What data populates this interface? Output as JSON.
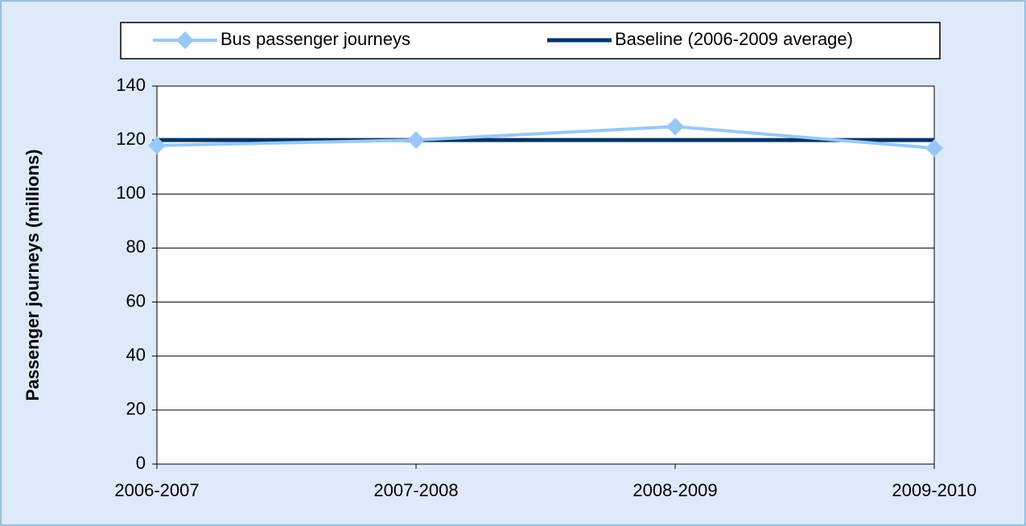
{
  "chart_data": {
    "type": "line",
    "y_label": "Passenger journeys (millions)",
    "categories": [
      "2006-2007",
      "2007-2008",
      "2008-2009",
      "2009-2010"
    ],
    "series": [
      {
        "name": "Bus passenger journeys",
        "color": "#99c8f5",
        "marker": "diamond",
        "values": [
          118,
          120,
          125,
          117
        ]
      },
      {
        "name": "Baseline (2006-2009 average)",
        "color": "#003366",
        "marker": "none",
        "values": [
          120,
          120,
          120,
          120
        ]
      }
    ],
    "ylim": [
      0,
      140
    ],
    "yticks": [
      0,
      20,
      40,
      60,
      80,
      100,
      120,
      140
    ],
    "grid": true,
    "legend": "top"
  }
}
